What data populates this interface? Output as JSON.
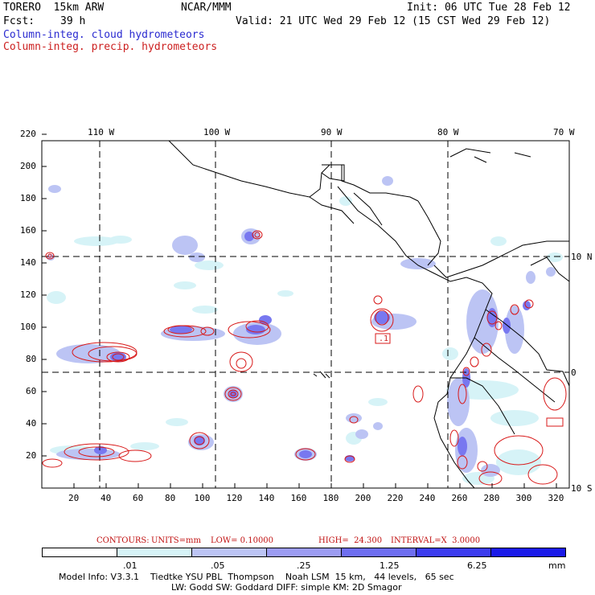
{
  "header": {
    "model": "TORERO  15km ARW",
    "center": "NCAR/MMM",
    "init": "Init: 06 UTC Tue 28 Feb 12",
    "fcst_label": "Fcst:",
    "fcst_value": "39 h",
    "valid": "Valid: 21 UTC Wed 29 Feb 12 (15 CST Wed 29 Feb 12)"
  },
  "legend": {
    "cloud": "Column-integ. cloud hydrometeors",
    "precip": "Column-integ. precip. hydrometeors"
  },
  "map": {
    "lon_labels": [
      "110 W",
      "100 W",
      "90 W",
      "80 W",
      "70 W"
    ],
    "lat_labels": [
      "10 N",
      "0",
      "10 S"
    ],
    "x_ticks": [
      "20",
      "40",
      "60",
      "80",
      "100",
      "120",
      "140",
      "160",
      "180",
      "200",
      "220",
      "240",
      "260",
      "280",
      "300",
      "320"
    ],
    "y_ticks": [
      "20",
      "40",
      "60",
      "80",
      "100",
      "120",
      "140",
      "160",
      "180",
      "200",
      "220"
    ],
    "contour_label": ".1"
  },
  "contours_line": {
    "label": "CONTOURS:",
    "units": "UNITS=mm",
    "low": "LOW= 0.10000",
    "high": "HIGH=  24.300",
    "interval": "INTERVAL=X  3.0000"
  },
  "colorbar": {
    "labels": [
      ".01",
      ".05",
      ".25",
      "1.25",
      "6.25"
    ],
    "units": "mm",
    "colors": [
      "#ffffff",
      "#d6f3f7",
      "#bcc4f4",
      "#9c9cf2",
      "#6e6ef0",
      "#3c3cee",
      "#1a1ae8"
    ]
  },
  "model_info": {
    "line1": "Model Info: V3.3.1    Tiedtke YSU PBL  Thompson    Noah LSM  15 km,   44 levels,   65 sec",
    "line2": "LW: Godd SW: Goddard DIFF: simple KM: 2D Smagor"
  }
}
